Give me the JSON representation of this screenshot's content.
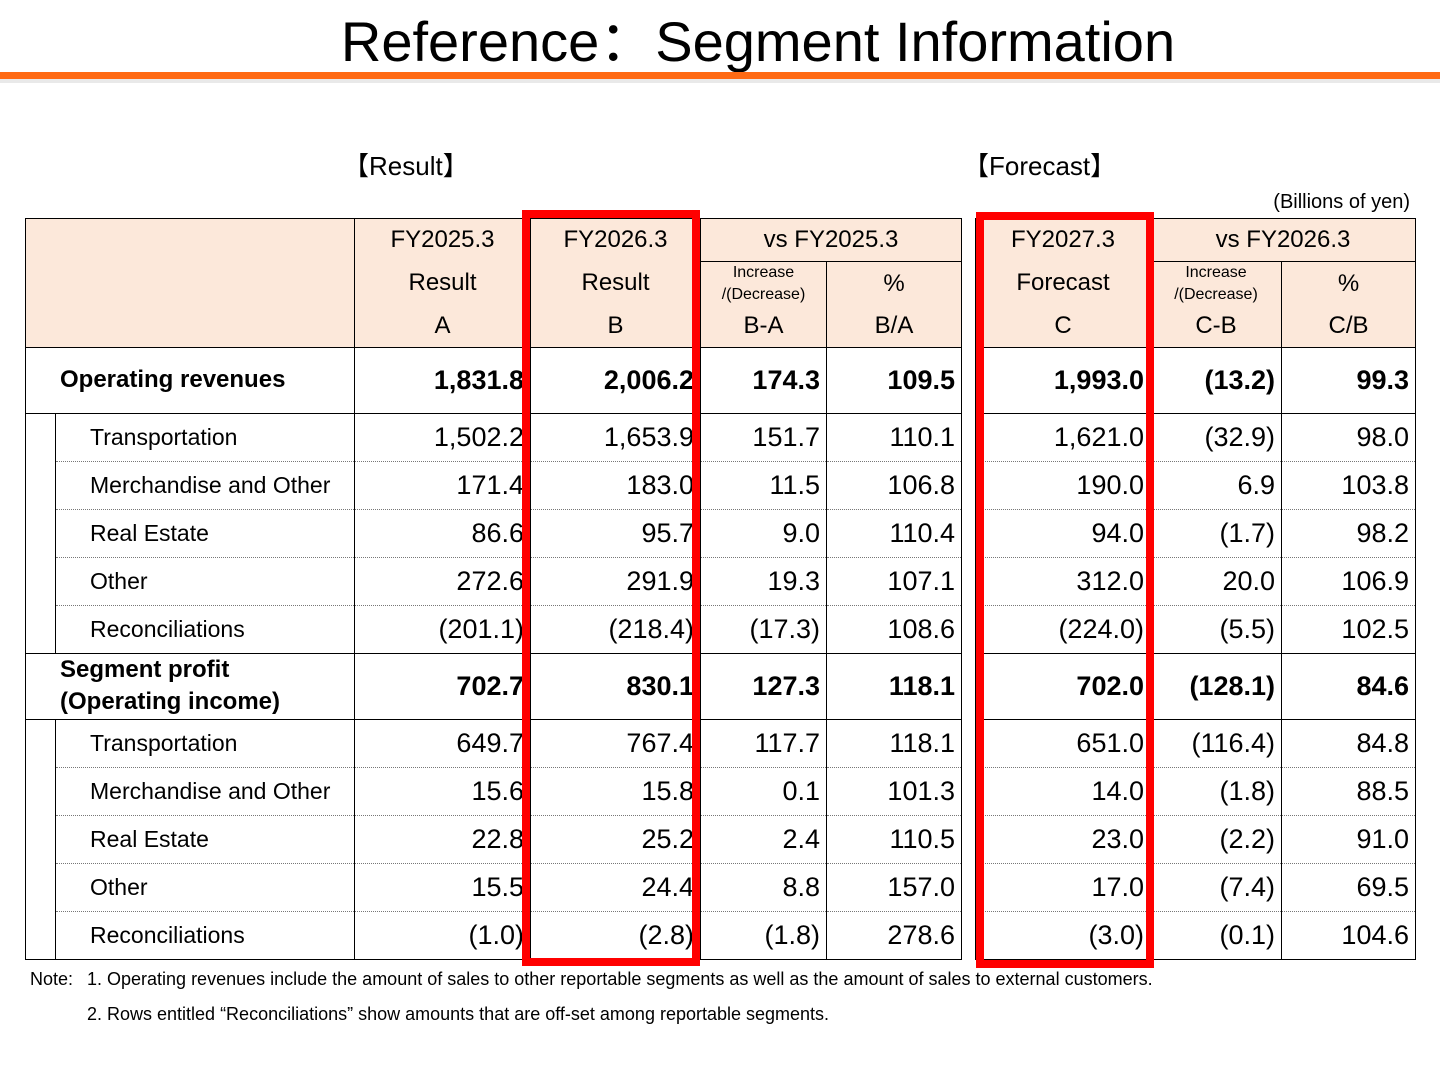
{
  "title": "Reference：Segment Information",
  "sections": {
    "result": "【Result】",
    "forecast": "【Forecast】"
  },
  "unit": "(Billions of yen)",
  "result_header": {
    "col_a": [
      "FY2025.3",
      "Result",
      "A"
    ],
    "col_b": [
      "FY2026.3",
      "Result",
      "B"
    ],
    "vs": "vs FY2025.3",
    "inc": "Increase\n/(Decrease)",
    "pct": "%",
    "inc_code": "B-A",
    "pct_code": "B/A"
  },
  "forecast_header": {
    "col_c": [
      "FY2027.3",
      "Forecast",
      "C"
    ],
    "vs": "vs FY2026.3",
    "inc": "Increase\n/(Decrease)",
    "pct": "%",
    "inc_code": "C-B",
    "pct_code": "C/B"
  },
  "rows": [
    {
      "label": "Operating revenues",
      "main": true,
      "a": "1,831.8",
      "b": "2,006.2",
      "ba": "174.3",
      "bpa": "109.5",
      "c": "1,993.0",
      "cb": "(13.2)",
      "cpb": "99.3"
    },
    {
      "label": "Transportation",
      "a": "1,502.2",
      "b": "1,653.9",
      "ba": "151.7",
      "bpa": "110.1",
      "c": "1,621.0",
      "cb": "(32.9)",
      "cpb": "98.0"
    },
    {
      "label": "Merchandise and Other",
      "a": "171.4",
      "b": "183.0",
      "ba": "11.5",
      "bpa": "106.8",
      "c": "190.0",
      "cb": "6.9",
      "cpb": "103.8"
    },
    {
      "label": "Real Estate",
      "a": "86.6",
      "b": "95.7",
      "ba": "9.0",
      "bpa": "110.4",
      "c": "94.0",
      "cb": "(1.7)",
      "cpb": "98.2"
    },
    {
      "label": "Other",
      "a": "272.6",
      "b": "291.9",
      "ba": "19.3",
      "bpa": "107.1",
      "c": "312.0",
      "cb": "20.0",
      "cpb": "106.9"
    },
    {
      "label": "Reconciliations",
      "a": "(201.1)",
      "b": "(218.4)",
      "ba": "(17.3)",
      "bpa": "108.6",
      "c": "(224.0)",
      "cb": "(5.5)",
      "cpb": "102.5"
    },
    {
      "label": "Segment profit\n(Operating income)",
      "main": true,
      "a": "702.7",
      "b": "830.1",
      "ba": "127.3",
      "bpa": "118.1",
      "c": "702.0",
      "cb": "(128.1)",
      "cpb": "84.6"
    },
    {
      "label": "Transportation",
      "a": "649.7",
      "b": "767.4",
      "ba": "117.7",
      "bpa": "118.1",
      "c": "651.0",
      "cb": "(116.4)",
      "cpb": "84.8"
    },
    {
      "label": "Merchandise and Other",
      "a": "15.6",
      "b": "15.8",
      "ba": "0.1",
      "bpa": "101.3",
      "c": "14.0",
      "cb": "(1.8)",
      "cpb": "88.5"
    },
    {
      "label": "Real Estate",
      "a": "22.8",
      "b": "25.2",
      "ba": "2.4",
      "bpa": "110.5",
      "c": "23.0",
      "cb": "(2.2)",
      "cpb": "91.0"
    },
    {
      "label": "Other",
      "a": "15.5",
      "b": "24.4",
      "ba": "8.8",
      "bpa": "157.0",
      "c": "17.0",
      "cb": "(7.4)",
      "cpb": "69.5"
    },
    {
      "label": "Reconciliations",
      "a": "(1.0)",
      "b": "(2.8)",
      "ba": "(1.8)",
      "bpa": "278.6",
      "c": "(3.0)",
      "cb": "(0.1)",
      "cpb": "104.6"
    }
  ],
  "notes": {
    "heading": "Note:",
    "items": [
      "1. Operating revenues include the amount of sales to other reportable segments as well as the amount of sales to external customers.",
      "2. Rows entitled “Reconciliations” show amounts that are off-set among reportable segments."
    ]
  }
}
